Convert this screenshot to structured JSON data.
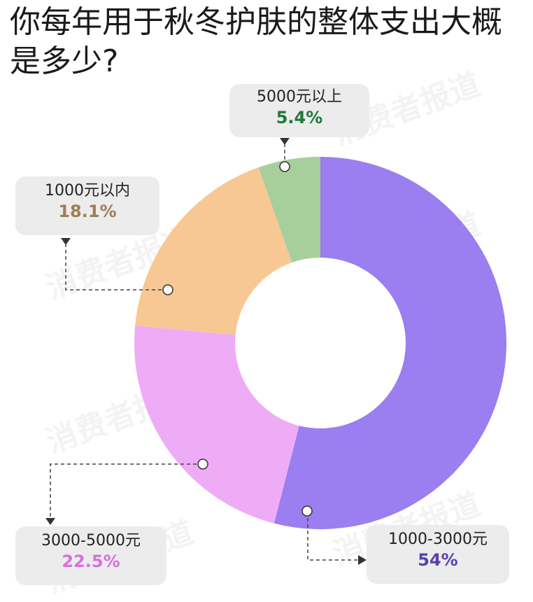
{
  "title": "你每年用于秋冬护肤的整体支出大概是多少?",
  "watermark_text": "消费者报道",
  "chart_data": {
    "type": "pie",
    "variant": "donut",
    "slices": [
      {
        "label": "1000-3000元",
        "value": 54,
        "display": "54%",
        "color": "#9b7ef0",
        "label_color": "#5b3fb0"
      },
      {
        "label": "3000-5000元",
        "value": 22.5,
        "display": "22.5%",
        "color": "#eeacf7",
        "label_color": "#d86fe0"
      },
      {
        "label": "1000元以内",
        "value": 18.1,
        "display": "18.1%",
        "color": "#f7c894",
        "label_color": "#a07e52"
      },
      {
        "label": "5000元以上",
        "value": 5.4,
        "display": "5.4%",
        "color": "#a7cf9b",
        "label_color": "#1f7a3a"
      }
    ]
  }
}
